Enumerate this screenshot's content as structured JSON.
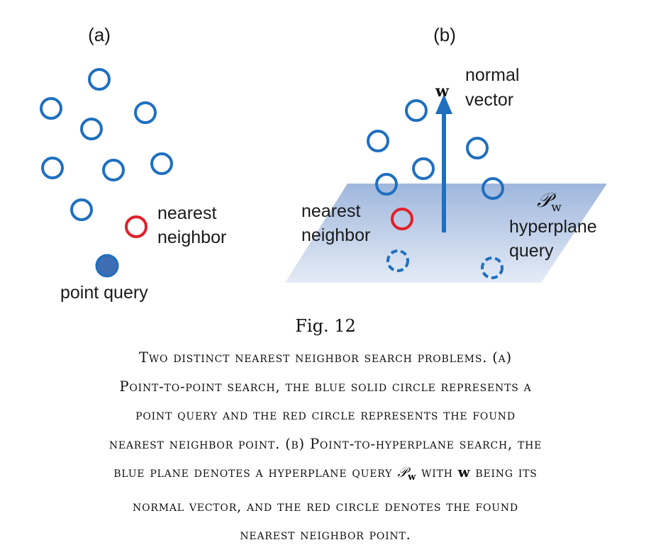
{
  "panel_a": {
    "label": "(a)",
    "nearest_line1": "nearest",
    "nearest_line2": "neighbor",
    "query_label": "point query"
  },
  "panel_b": {
    "label": "(b)",
    "vector_symbol": "w",
    "normal_line1": "normal",
    "normal_line2": "vector",
    "plane_symbol": "𝒫",
    "plane_subscript": "w",
    "hyperplane_line1": "hyperplane",
    "hyperplane_line2": "query",
    "nearest_line1": "nearest",
    "nearest_line2": "neighbor"
  },
  "colors": {
    "blue": "#1f6fbf",
    "red": "#e0202a",
    "query_fill": "#3d6db3",
    "plane_light": "#dde6f4",
    "plane_dark": "#9fb7dd"
  },
  "figure_number": "Fig. 12",
  "caption": {
    "line1": "Two distinct nearest neighbor search problems. (a)",
    "line2": "Point-to-point search, the blue solid circle represents a",
    "line3": "point query and the red circle represents the found",
    "line4": "nearest neighbor point. (b) Point-to-hyperplane search, the",
    "line5_pre": "blue plane denotes a hyperplane query",
    "line5_math": "𝒫",
    "line5_sub": "w",
    "line5_mid": "with",
    "line5_bold": "w",
    "line5_post": "being its",
    "line6": "normal vector, and the red circle denotes the found",
    "line7": "nearest neighbor point."
  }
}
